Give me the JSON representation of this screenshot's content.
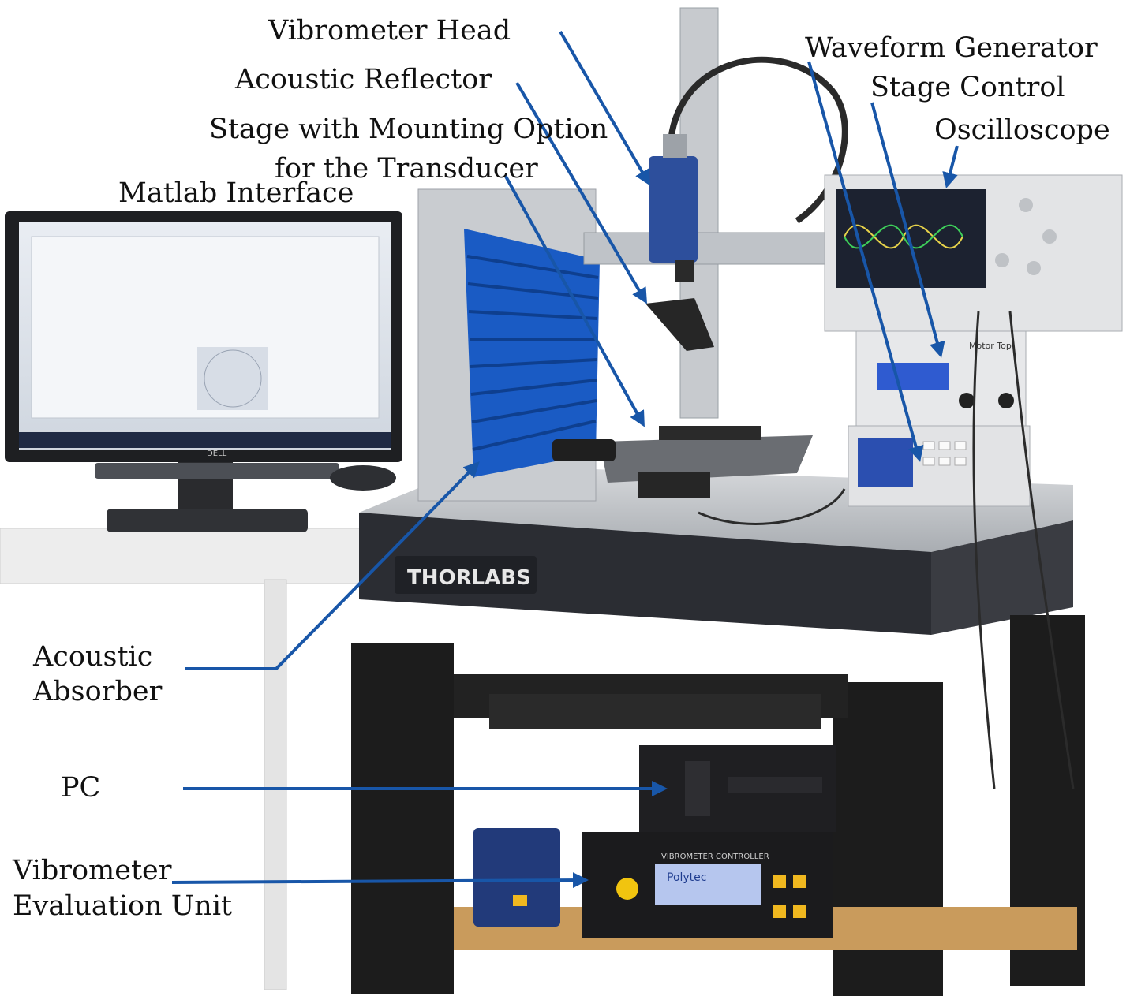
{
  "labels": {
    "vibrometer_head": "Vibrometer Head",
    "acoustic_reflector": "Acoustic Reflector",
    "stage_line1": "Stage with Mounting Option",
    "stage_line2": "for the Transducer",
    "matlab_interface": "Matlab Interface",
    "waveform_generator": "Waveform Generator",
    "stage_control": "Stage Control",
    "oscilloscope": "Oscilloscope",
    "acoustic_line1": "Acoustic",
    "acoustic_line2": "Absorber",
    "pc": "PC",
    "vib_eval_line1": "Vibrometer",
    "vib_eval_line2": "Evaluation Unit"
  },
  "photo_text": {
    "thorlabs_plate": "THORLABS",
    "polytec_display": "Polytec",
    "vibrometer_controller": "VIBROMETER CONTROLLER",
    "motor_top": "Motor Top",
    "dell": "DELL"
  },
  "colors": {
    "arrow": "#1856a8",
    "absorber_foam": "#1a5bc4",
    "table_frame": "#1c1c1c"
  }
}
